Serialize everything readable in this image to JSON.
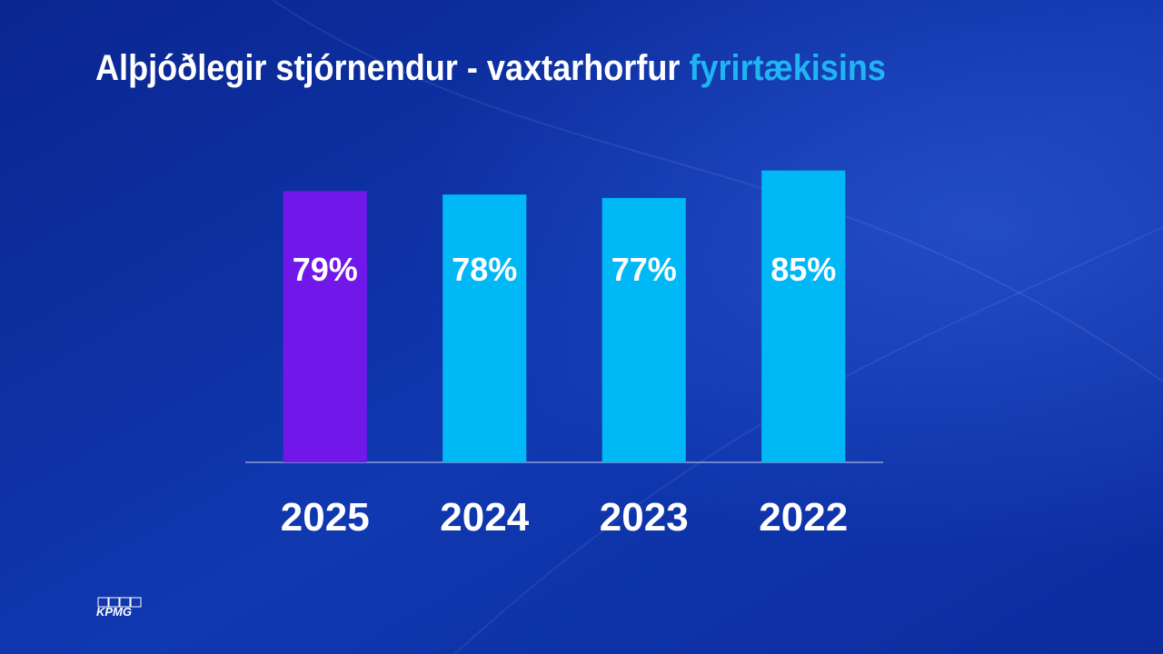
{
  "chart_data": {
    "type": "bar",
    "title": "Alþjóðlegir stjórnendur - vaxtarhorfur",
    "title_highlight": "fyrirtækisins",
    "categories": [
      "2025",
      "2024",
      "2023",
      "2022"
    ],
    "values": [
      79,
      78,
      77,
      85
    ],
    "value_labels": [
      "79%",
      "78%",
      "77%",
      "85%"
    ],
    "colors": [
      "#7217ea",
      "#00b8f5",
      "#00b8f5",
      "#00b8f5"
    ],
    "ylim": [
      0,
      100
    ]
  },
  "logo": "KPMG"
}
